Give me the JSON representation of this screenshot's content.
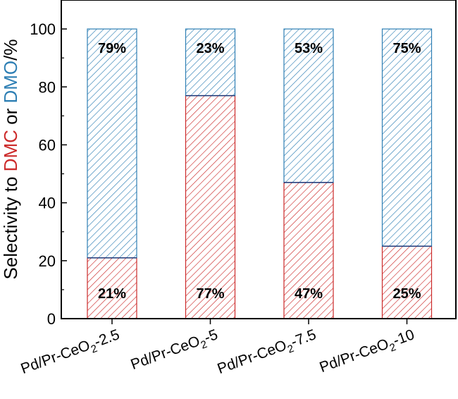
{
  "chart_data": {
    "type": "bar",
    "stacked": true,
    "categories": [
      {
        "label": "Pd/Pr-CeO",
        "sub": "2",
        "suffix": "-2.5"
      },
      {
        "label": "Pd/Pr-CeO",
        "sub": "2",
        "suffix": "-5"
      },
      {
        "label": "Pd/Pr-CeO",
        "sub": "2",
        "suffix": "-7.5"
      },
      {
        "label": "Pd/Pr-CeO",
        "sub": "2",
        "suffix": "-10"
      }
    ],
    "series": [
      {
        "name": "DMC",
        "color": "#cc2a2a",
        "values": [
          21,
          77,
          47,
          25
        ],
        "labels": [
          "21%",
          "77%",
          "47%",
          "25%"
        ]
      },
      {
        "name": "DMO",
        "color": "#2e7fb4",
        "values": [
          79,
          23,
          53,
          75
        ],
        "labels": [
          "79%",
          "23%",
          "53%",
          "75%"
        ]
      }
    ],
    "ylabel": {
      "prefix": "Selectivity to ",
      "dmc": "DMC",
      "middle": " or ",
      "dmo": "DMO",
      "suffix": "/%"
    },
    "ylim": [
      0,
      110
    ],
    "yticks": [
      "0",
      "20",
      "40",
      "60",
      "80",
      "100"
    ],
    "grid": false,
    "legend": "none"
  }
}
